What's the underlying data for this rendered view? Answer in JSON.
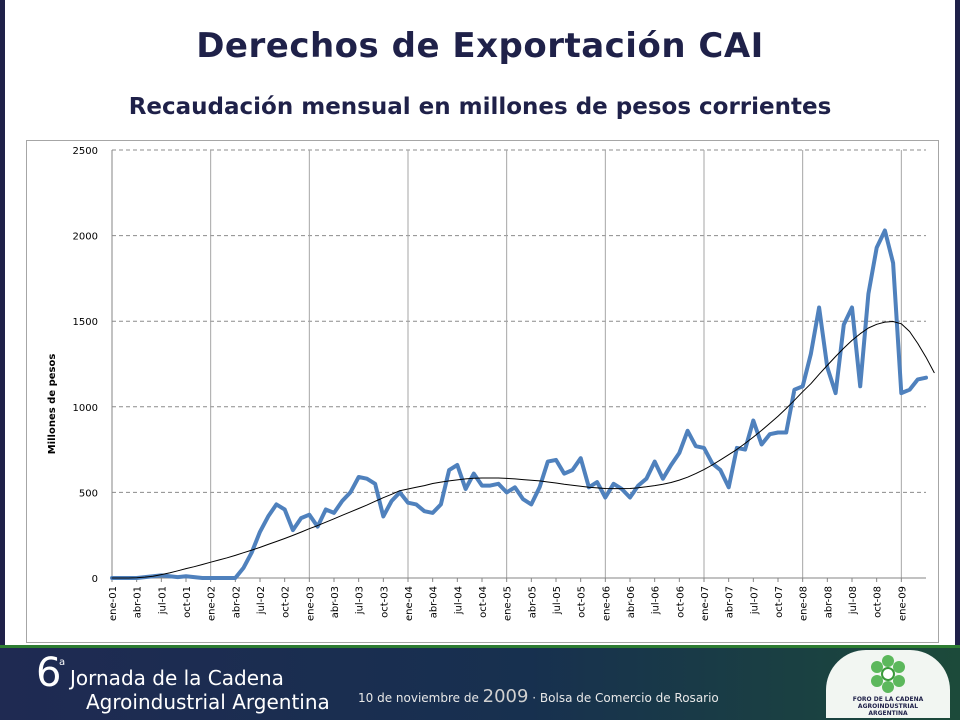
{
  "header": {
    "title": "Derechos de Exportación CAI",
    "subtitle": "Recaudación mensual en millones de pesos corrientes"
  },
  "footer": {
    "edition_number": "6",
    "edition_suffix": "a",
    "event_line1": "Jornada de la Cadena",
    "event_line2": "Agroindustrial Argentina",
    "date_prefix": "10 de noviembre de ",
    "date_year": "2009",
    "date_suffix": " · Bolsa de Comercio de Rosario",
    "logo_line1": "FORO DE LA CADENA",
    "logo_line2": "AGROINDUSTRIAL ARGENTINA",
    "colors": {
      "footer_bg": "#1f2a52",
      "accent": "#2e7d32"
    }
  },
  "chart_data": {
    "type": "line",
    "title": "",
    "xlabel": "",
    "ylabel": "Millones de pesos",
    "ylim": [
      0,
      2500
    ],
    "yticks": [
      0,
      500,
      1000,
      1500,
      2000,
      2500
    ],
    "grid": {
      "horizontal": "dashed",
      "vertical": "solid"
    },
    "x_tick_labels": [
      "ene-01",
      "abr-01",
      "jul-01",
      "oct-01",
      "ene-02",
      "abr-02",
      "jul-02",
      "oct-02",
      "ene-03",
      "abr-03",
      "jul-03",
      "oct-03",
      "ene-04",
      "abr-04",
      "jul-04",
      "oct-04",
      "ene-05",
      "abr-05",
      "jul-05",
      "oct-05",
      "ene-06",
      "abr-06",
      "jul-06",
      "oct-06",
      "ene-07",
      "abr-07",
      "jul-07",
      "oct-07",
      "ene-08",
      "abr-08",
      "jul-08",
      "oct-08",
      "ene-09"
    ],
    "series": [
      {
        "color": "#4f81bd",
        "values": [
          0,
          0,
          0,
          0,
          5,
          10,
          15,
          10,
          5,
          10,
          5,
          0,
          0,
          0,
          0,
          0,
          60,
          150,
          270,
          360,
          430,
          400,
          280,
          350,
          370,
          300,
          400,
          380,
          450,
          500,
          590,
          580,
          550,
          360,
          450,
          500,
          440,
          430,
          390,
          380,
          430,
          630,
          660,
          520,
          610,
          540,
          540,
          550,
          500,
          530,
          460,
          430,
          530,
          680,
          690,
          610,
          630,
          700,
          530,
          560,
          470,
          550,
          520,
          470,
          540,
          580,
          680,
          580,
          660,
          730,
          860,
          770,
          760,
          670,
          630,
          530,
          760,
          750,
          920,
          780,
          840,
          850,
          850,
          1100,
          1120,
          1310,
          1580,
          1230,
          1080,
          1480,
          1580,
          1120,
          1660,
          1930,
          2030,
          1840,
          1080,
          1100,
          1160,
          1170
        ]
      },
      {
        "color": "#000000",
        "values": [
          0,
          0,
          0,
          2,
          5,
          10,
          20,
          30,
          42,
          55,
          66,
          79,
          92,
          105,
          118,
          132,
          148,
          163,
          179,
          196,
          213,
          231,
          249,
          268,
          288,
          306,
          326,
          346,
          366,
          386,
          406,
          426,
          448,
          469,
          489,
          510,
          520,
          530,
          540,
          552,
          560,
          567,
          573,
          579,
          583,
          584,
          584,
          584,
          582,
          579,
          575,
          571,
          567,
          561,
          555,
          548,
          542,
          536,
          530,
          526,
          523,
          522,
          522,
          523,
          527,
          533,
          540,
          548,
          558,
          572,
          589,
          610,
          633,
          660,
          690,
          720,
          751,
          786,
          823,
          862,
          903,
          945,
          990,
          1038,
          1088,
          1135,
          1190,
          1242,
          1294,
          1343,
          1388,
          1427,
          1460,
          1482,
          1495,
          1498,
          1485,
          1440,
          1370,
          1290,
          1200
        ]
      }
    ]
  }
}
